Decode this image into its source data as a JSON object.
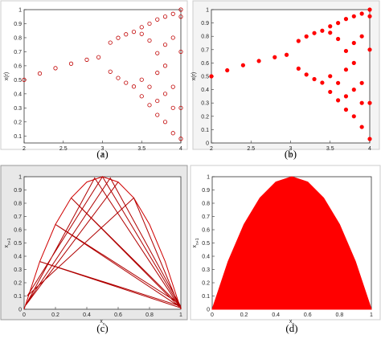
{
  "chart_data": [
    {
      "type": "scatter",
      "caption": "(a)",
      "xlabel": {
        "text": "r"
      },
      "ylabel": {
        "text": "x(r)"
      },
      "xlim": [
        2,
        4
      ],
      "xticks": [
        2,
        2.5,
        3,
        3.5,
        4
      ],
      "ylim": [
        0.05,
        1
      ],
      "yticks": [
        0.1,
        0.2,
        0.3,
        0.4,
        0.5,
        0.6,
        0.7,
        0.8,
        0.9,
        1
      ],
      "marker": "open",
      "series": [
        {
          "color": "#c00000",
          "x": [
            2,
            2.2,
            2.4,
            2.6,
            2.8,
            2.95,
            3.1,
            3.1,
            3.2,
            3.2,
            3.3,
            3.3,
            3.4,
            3.4,
            3.5,
            3.5,
            3.5,
            3.5,
            3.6,
            3.6,
            3.6,
            3.6,
            3.7,
            3.7,
            3.7,
            3.7,
            3.7,
            3.8,
            3.8,
            3.8,
            3.8,
            3.8,
            3.9,
            3.9,
            3.9,
            3.9,
            3.9,
            4,
            4,
            4,
            4,
            4
          ],
          "values": [
            0.5,
            0.545,
            0.583,
            0.615,
            0.643,
            0.661,
            0.765,
            0.558,
            0.799,
            0.513,
            0.824,
            0.479,
            0.842,
            0.452,
            0.875,
            0.383,
            0.827,
            0.501,
            0.32,
            0.78,
            0.9,
            0.45,
            0.25,
            0.69,
            0.93,
            0.55,
            0.35,
            0.2,
            0.6,
            0.95,
            0.4,
            0.75,
            0.12,
            0.45,
            0.97,
            0.3,
            0.8,
            0.08,
            0.3,
            0.7,
            0.95,
            1
          ]
        }
      ]
    },
    {
      "type": "scatter",
      "caption": "(b)",
      "xlabel": {
        "text": "r"
      },
      "ylabel": {
        "text": "x(r)"
      },
      "xlim": [
        2,
        4
      ],
      "xticks": [
        2,
        2.5,
        3,
        3.5,
        4
      ],
      "ylim": [
        0,
        1
      ],
      "yticks": [
        0,
        0.1,
        0.2,
        0.3,
        0.4,
        0.5,
        0.6,
        0.7,
        0.8,
        0.9,
        1
      ],
      "marker": "filled",
      "series": [
        {
          "color": "#ff0000",
          "x": [
            2,
            2.2,
            2.4,
            2.6,
            2.8,
            2.95,
            3.1,
            3.1,
            3.2,
            3.2,
            3.3,
            3.3,
            3.4,
            3.4,
            3.5,
            3.5,
            3.5,
            3.5,
            3.6,
            3.6,
            3.6,
            3.6,
            3.7,
            3.7,
            3.7,
            3.7,
            3.7,
            3.8,
            3.8,
            3.8,
            3.8,
            3.8,
            3.9,
            3.9,
            3.9,
            3.9,
            3.9,
            4,
            4,
            4,
            4,
            4
          ],
          "values": [
            0.5,
            0.545,
            0.583,
            0.615,
            0.643,
            0.661,
            0.765,
            0.558,
            0.799,
            0.513,
            0.824,
            0.479,
            0.842,
            0.452,
            0.875,
            0.383,
            0.827,
            0.501,
            0.32,
            0.78,
            0.9,
            0.45,
            0.25,
            0.69,
            0.93,
            0.55,
            0.35,
            0.2,
            0.6,
            0.95,
            0.4,
            0.75,
            0.12,
            0.45,
            0.97,
            0.3,
            0.8,
            0.03,
            0.3,
            0.7,
            0.95,
            1
          ]
        }
      ]
    },
    {
      "type": "line",
      "caption": "(c)",
      "xlabel": {
        "text": "x",
        "sub": "n"
      },
      "ylabel": {
        "text": "x",
        "sub": "n+1"
      },
      "xlim": [
        0,
        1
      ],
      "xticks": [
        0,
        0.2,
        0.4,
        0.6,
        0.8,
        1
      ],
      "ylim": [
        0,
        1
      ],
      "yticks": [
        0,
        0.1,
        0.2,
        0.3,
        0.4,
        0.5,
        0.6,
        0.7,
        0.8,
        0.9,
        1
      ],
      "series": [
        {
          "color": "#d00000",
          "x": [
            0,
            0.1,
            0.2,
            0.3,
            0.4,
            0.5,
            0.6,
            0.7,
            0.8,
            0.9,
            1
          ],
          "values": [
            0,
            0.36,
            0.64,
            0.84,
            0.96,
            1,
            0.96,
            0.84,
            0.64,
            0.36,
            0
          ]
        },
        {
          "color": "#b00000",
          "x": [
            0.02,
            0.55,
            1,
            0.3,
            0.98,
            0.1,
            1,
            0.5,
            0.02,
            0.7,
            0.98,
            0.2,
            0.99,
            0.45,
            0.01,
            0.6
          ],
          "values": [
            0.05,
            0.99,
            0.02,
            0.84,
            0.03,
            0.36,
            0.01,
            1,
            0.1,
            0.84,
            0.05,
            0.64,
            0.02,
            0.99,
            0.03,
            0.96
          ]
        }
      ]
    },
    {
      "type": "line",
      "caption": "(d)",
      "xlabel": {
        "text": "x",
        "sub": "n"
      },
      "ylabel": {
        "text": "x",
        "sub": "n+1"
      },
      "xlim": [
        0,
        1
      ],
      "xticks": [
        0,
        0.2,
        0.4,
        0.6,
        0.8,
        1
      ],
      "ylim": [
        0,
        1
      ],
      "yticks": [
        0,
        0.1,
        0.2,
        0.3,
        0.4,
        0.5,
        0.6,
        0.7,
        0.8,
        0.9,
        1
      ],
      "series": [
        {
          "color": "#ff0000",
          "fill": true,
          "x": [
            0,
            0.1,
            0.2,
            0.3,
            0.4,
            0.5,
            0.6,
            0.7,
            0.8,
            0.9,
            1
          ],
          "values": [
            0,
            0.36,
            0.64,
            0.84,
            0.96,
            1,
            0.96,
            0.84,
            0.64,
            0.36,
            0
          ]
        }
      ]
    }
  ]
}
